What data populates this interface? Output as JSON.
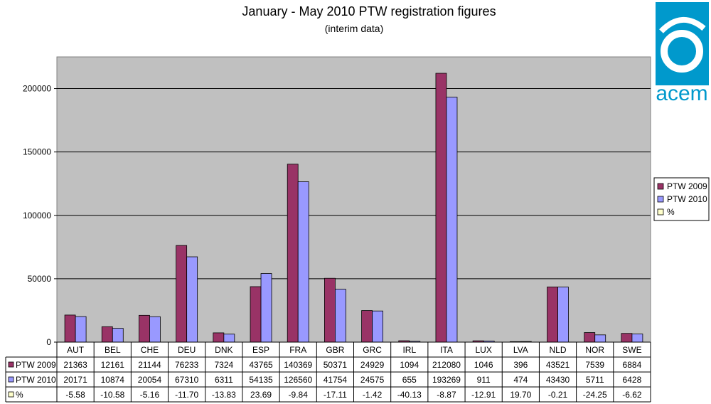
{
  "chart_data": {
    "type": "bar",
    "title": "January - May 2010 PTW registration figures",
    "subtitle": "(interim data)",
    "categories": [
      "AUT",
      "BEL",
      "CHE",
      "DEU",
      "DNK",
      "ESP",
      "FRA",
      "GBR",
      "GRC",
      "IRL",
      "ITA",
      "LUX",
      "LVA",
      "NLD",
      "NOR",
      "SWE"
    ],
    "series": [
      {
        "name": "PTW 2009",
        "color": "#993366",
        "values": [
          21363,
          12161,
          21144,
          76233,
          7324,
          43765,
          140369,
          50371,
          24929,
          1094,
          212080,
          1046,
          396,
          43521,
          7539,
          6884
        ]
      },
      {
        "name": "PTW 2010",
        "color": "#9999ff",
        "values": [
          20171,
          10874,
          20054,
          67310,
          6311,
          54135,
          126560,
          41754,
          24575,
          655,
          193269,
          911,
          474,
          43430,
          5711,
          6428
        ]
      },
      {
        "name": "%",
        "color": "#ffffcc",
        "plotted": false,
        "values": [
          "-5.58",
          "-10.58",
          "-5.16",
          "-11.70",
          "-13.83",
          "23.69",
          "-9.84",
          "-17.11",
          "-1.42",
          "-40.13",
          "-8.87",
          "-12.91",
          "19.70",
          "-0.21",
          "-24.25",
          "-6.62"
        ]
      }
    ],
    "yticks": [
      0,
      50000,
      100000,
      150000,
      200000
    ],
    "ylim": [
      0,
      225000
    ],
    "grid": true,
    "plot_background": "#c0c0c0",
    "legend_position": "right",
    "data_table": true
  },
  "logo": {
    "text": "acem",
    "color": "#0099cc"
  }
}
